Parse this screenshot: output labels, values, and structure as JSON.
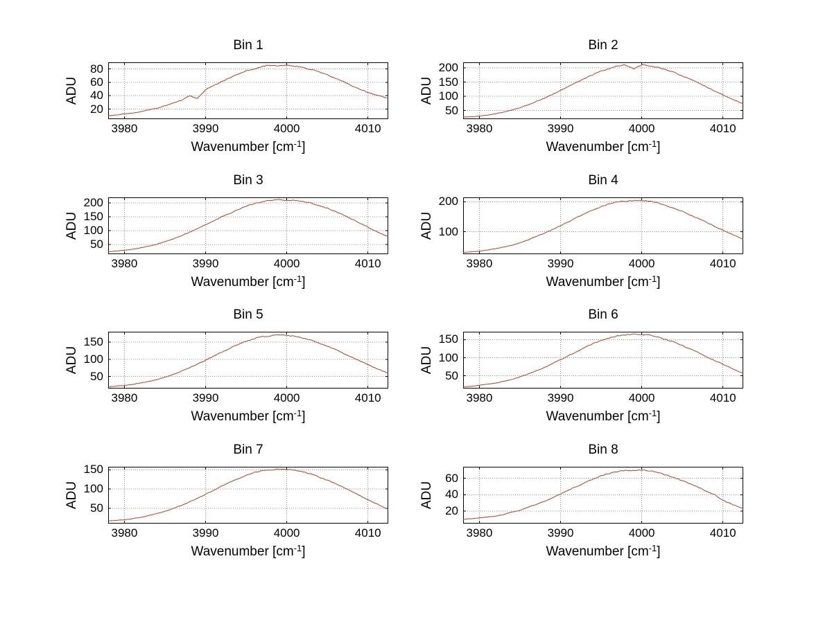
{
  "figure": {
    "background": "#ffffff",
    "line_color": "#bf3a1e",
    "grid_color": "#8c8c8c",
    "axis_color": "#000000",
    "xlabel": {
      "text": "Wavenumber [cm",
      "sup": "-1",
      "close": "]"
    },
    "ylabel": "ADU"
  },
  "chart_data": [
    {
      "type": "line",
      "title": "Bin 1",
      "xlabel": "Wavenumber [cm⁻¹]",
      "ylabel": "ADU",
      "xlim": [
        3978,
        4012.5
      ],
      "ylim": [
        5,
        90
      ],
      "xticks": [
        3980,
        3990,
        4000,
        4010
      ],
      "yticks": [
        20,
        40,
        60,
        80
      ],
      "x_start": 3978,
      "x_step": 1,
      "y": [
        10,
        11,
        13,
        14,
        16,
        19,
        21,
        25,
        29,
        33,
        40,
        36,
        49,
        55,
        61,
        67,
        72,
        77,
        80,
        84,
        86,
        85,
        86,
        84,
        82,
        79,
        76,
        71,
        66,
        61,
        55,
        50,
        45,
        41,
        38
      ],
      "noise": 1.3
    },
    {
      "type": "line",
      "title": "Bin 2",
      "xlabel": "Wavenumber [cm⁻¹]",
      "ylabel": "ADU",
      "xlim": [
        3978,
        4012.5
      ],
      "ylim": [
        20,
        220
      ],
      "xticks": [
        3980,
        3990,
        4000,
        4010
      ],
      "yticks": [
        50,
        100,
        150,
        200
      ],
      "x_start": 3978,
      "x_step": 1,
      "y": [
        28,
        28,
        31,
        34,
        39,
        45,
        52,
        60,
        70,
        82,
        94,
        107,
        121,
        136,
        150,
        164,
        177,
        190,
        198,
        207,
        211,
        196,
        212,
        208,
        202,
        193,
        184,
        172,
        160,
        147,
        133,
        119,
        105,
        92,
        80
      ],
      "noise": 3.0
    },
    {
      "type": "line",
      "title": "Bin 3",
      "xlabel": "Wavenumber [cm⁻¹]",
      "ylabel": "ADU",
      "xlim": [
        3978,
        4012.5
      ],
      "ylim": [
        15,
        220
      ],
      "xticks": [
        3980,
        3990,
        4000,
        4010
      ],
      "yticks": [
        50,
        100,
        150,
        200
      ],
      "x_start": 3978,
      "x_step": 1,
      "y": [
        24,
        26,
        29,
        33,
        38,
        44,
        51,
        60,
        70,
        81,
        94,
        107,
        121,
        135,
        150,
        163,
        176,
        188,
        197,
        205,
        209,
        211,
        208,
        210,
        205,
        199,
        191,
        181,
        169,
        156,
        142,
        127,
        112,
        97,
        84
      ],
      "noise": 3.0
    },
    {
      "type": "line",
      "title": "Bin 4",
      "xlabel": "Wavenumber [cm⁻¹]",
      "ylabel": "ADU",
      "xlim": [
        3978,
        4012.5
      ],
      "ylim": [
        25,
        215
      ],
      "xticks": [
        3980,
        3990,
        4000,
        4010
      ],
      "yticks": [
        100,
        200
      ],
      "x_start": 3978,
      "x_step": 1,
      "y": [
        31,
        33,
        35,
        39,
        43,
        49,
        55,
        63,
        73,
        84,
        95,
        107,
        120,
        134,
        148,
        161,
        173,
        184,
        193,
        200,
        202,
        205,
        204,
        202,
        196,
        188,
        178,
        168,
        156,
        144,
        131,
        118,
        105,
        93,
        81
      ],
      "noise": 2.8
    },
    {
      "type": "line",
      "title": "Bin 5",
      "xlabel": "Wavenumber [cm⁻¹]",
      "ylabel": "ADU",
      "xlim": [
        3978,
        4012.5
      ],
      "ylim": [
        15,
        180
      ],
      "xticks": [
        3980,
        3990,
        4000,
        4010
      ],
      "yticks": [
        50,
        100,
        150
      ],
      "x_start": 3978,
      "x_step": 1,
      "y": [
        20,
        22,
        24,
        27,
        31,
        36,
        41,
        48,
        56,
        65,
        75,
        86,
        97,
        109,
        121,
        132,
        143,
        152,
        160,
        166,
        168,
        171,
        169,
        167,
        162,
        155,
        147,
        138,
        128,
        117,
        106,
        95,
        84,
        74,
        64
      ],
      "noise": 2.4
    },
    {
      "type": "line",
      "title": "Bin 6",
      "xlabel": "Wavenumber [cm⁻¹]",
      "ylabel": "ADU",
      "xlim": [
        3978,
        4012.5
      ],
      "ylim": [
        15,
        172
      ],
      "xticks": [
        3980,
        3990,
        4000,
        4010
      ],
      "yticks": [
        50,
        100,
        150
      ],
      "x_start": 3978,
      "x_step": 1,
      "y": [
        20,
        21,
        24,
        27,
        30,
        35,
        40,
        47,
        55,
        64,
        73,
        84,
        95,
        106,
        117,
        129,
        139,
        148,
        155,
        161,
        163,
        166,
        164,
        163,
        157,
        150,
        143,
        134,
        124,
        114,
        103,
        92,
        82,
        72,
        62
      ],
      "noise": 2.4
    },
    {
      "type": "line",
      "title": "Bin 7",
      "xlabel": "Wavenumber [cm⁻¹]",
      "ylabel": "ADU",
      "xlim": [
        3978,
        4012.5
      ],
      "ylim": [
        10,
        158
      ],
      "xticks": [
        3980,
        3990,
        4000,
        4010
      ],
      "yticks": [
        50,
        100,
        150
      ],
      "x_start": 3978,
      "x_step": 1,
      "y": [
        17,
        18,
        20,
        23,
        26,
        31,
        36,
        42,
        49,
        57,
        66,
        76,
        86,
        97,
        108,
        118,
        127,
        136,
        143,
        148,
        150,
        152,
        151,
        150,
        145,
        139,
        131,
        123,
        114,
        104,
        94,
        83,
        72,
        62,
        52
      ],
      "noise": 2.2
    },
    {
      "type": "line",
      "title": "Bin 8",
      "xlabel": "Wavenumber [cm⁻¹]",
      "ylabel": "ADU",
      "xlim": [
        3978,
        4012.5
      ],
      "ylim": [
        5,
        74
      ],
      "xticks": [
        3980,
        3990,
        4000,
        4010
      ],
      "yticks": [
        20,
        40,
        60
      ],
      "x_start": 3978,
      "x_step": 1,
      "y": [
        10,
        11,
        12,
        13,
        14,
        16,
        19,
        21,
        25,
        28,
        32,
        36,
        41,
        46,
        50,
        55,
        59,
        63,
        66,
        68,
        70,
        69,
        70,
        69,
        67,
        64,
        61,
        57,
        53,
        49,
        44,
        40,
        33,
        29,
        25
      ],
      "noise": 1.1
    }
  ]
}
